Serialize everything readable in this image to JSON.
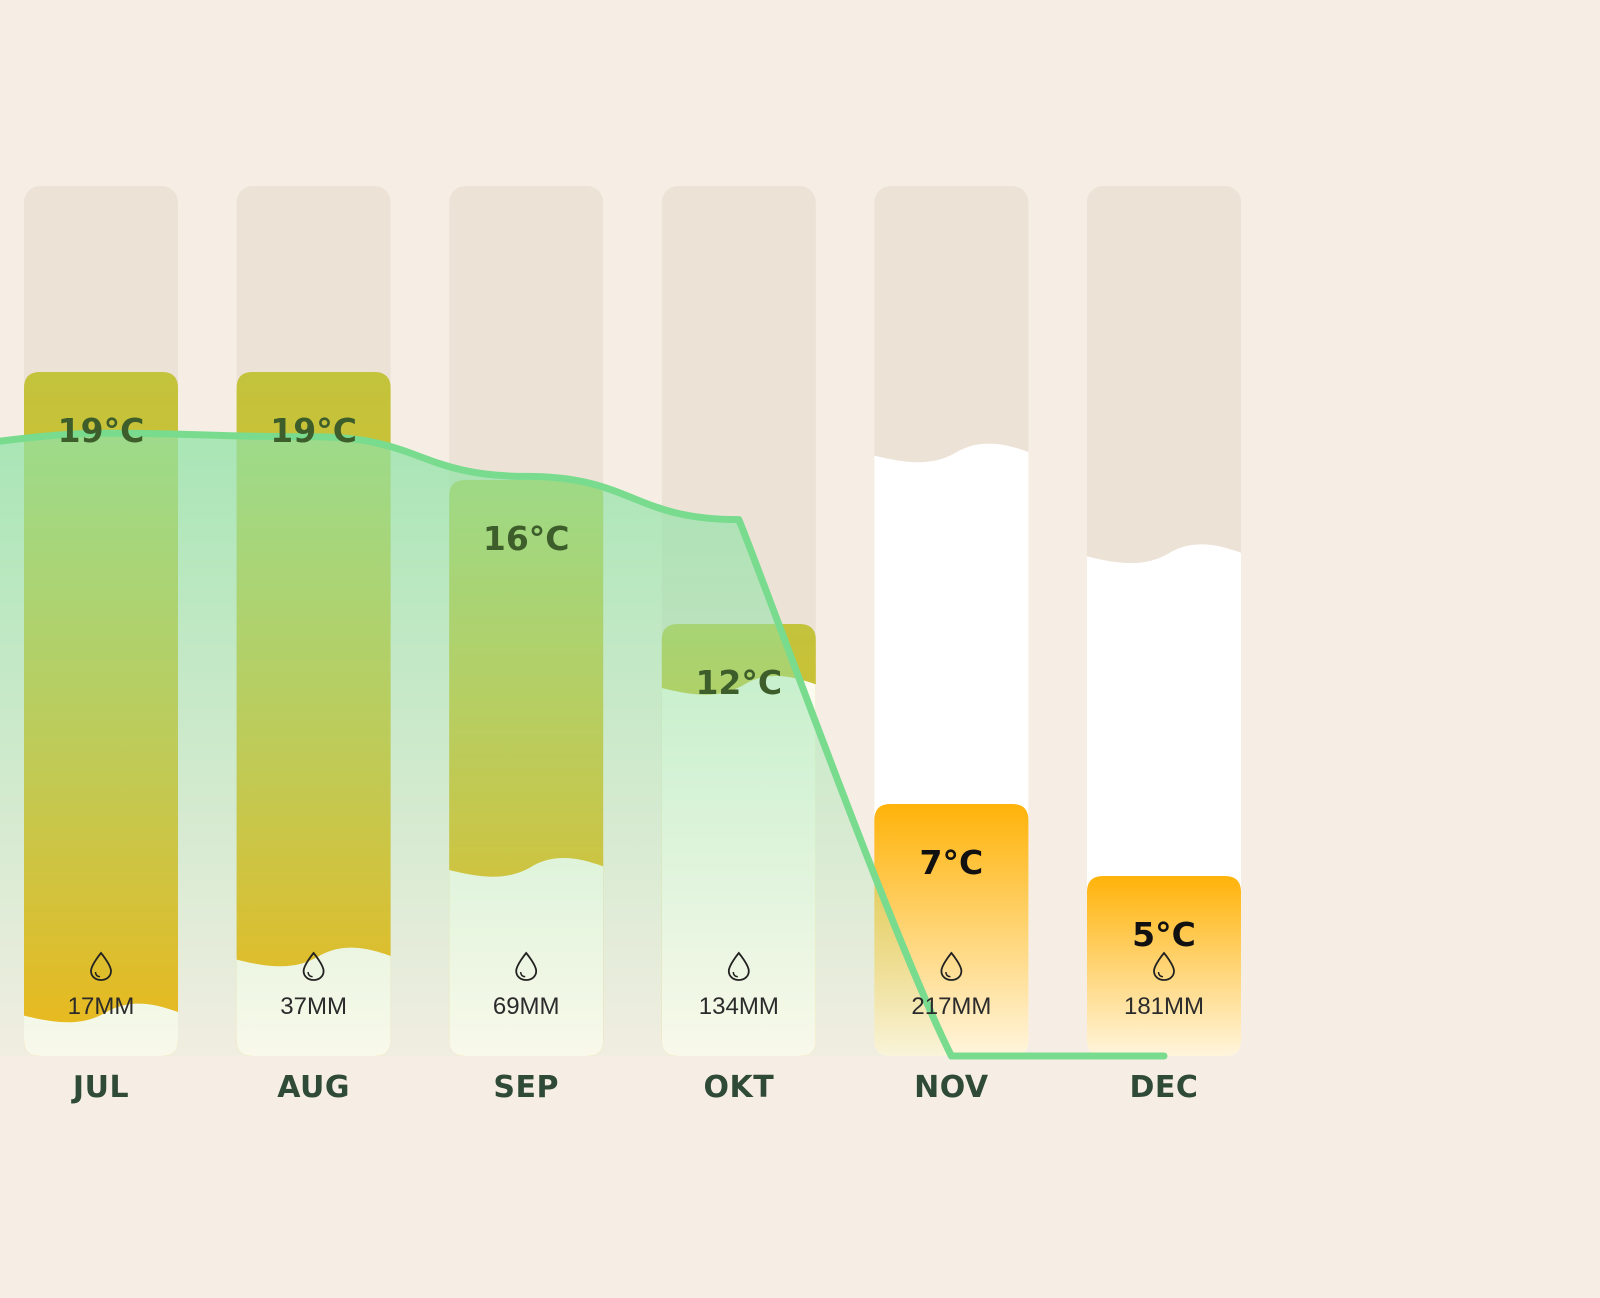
{
  "chart_data": {
    "type": "bar",
    "categories": [
      "JUL",
      "AUG",
      "SEP",
      "OKT",
      "NOV",
      "DEC"
    ],
    "temperature": {
      "values": [
        19,
        19,
        16,
        12,
        7,
        5
      ],
      "labels": [
        "19°C",
        "19°C",
        "16°C",
        "12°C",
        "7°C",
        "5°C"
      ],
      "ylim": [
        0,
        25
      ]
    },
    "precipitation": {
      "values": [
        17,
        37,
        69,
        134,
        217,
        181
      ],
      "labels": [
        "17MM",
        "37MM",
        "69MM",
        "134MM",
        "217MM",
        "181MM"
      ],
      "ylim": [
        0,
        300
      ]
    },
    "line": {
      "values": [
        17.3,
        17.2,
        16.1,
        14.9,
        0,
        0
      ],
      "ylim": [
        0,
        25
      ]
    },
    "title": "",
    "xlabel": "",
    "ylabel": "",
    "legend": "none",
    "grid": false
  },
  "colors": {
    "background": "#f6eee4",
    "column_track": "#ede2d6",
    "rain_fill": "#ffffff",
    "warm_top": "#c3c33c",
    "warm_bottom": "#f2b511",
    "cool_top": "#ffb30a",
    "cool_bottom": "#fff5dd",
    "line": "#79db8e",
    "area": "#8fe3a6",
    "temp_text_warm": "#3d5e2b",
    "temp_text_cool": "#111111",
    "month_text": "#2f4a36"
  },
  "icons": {
    "rain": "droplet-icon"
  }
}
